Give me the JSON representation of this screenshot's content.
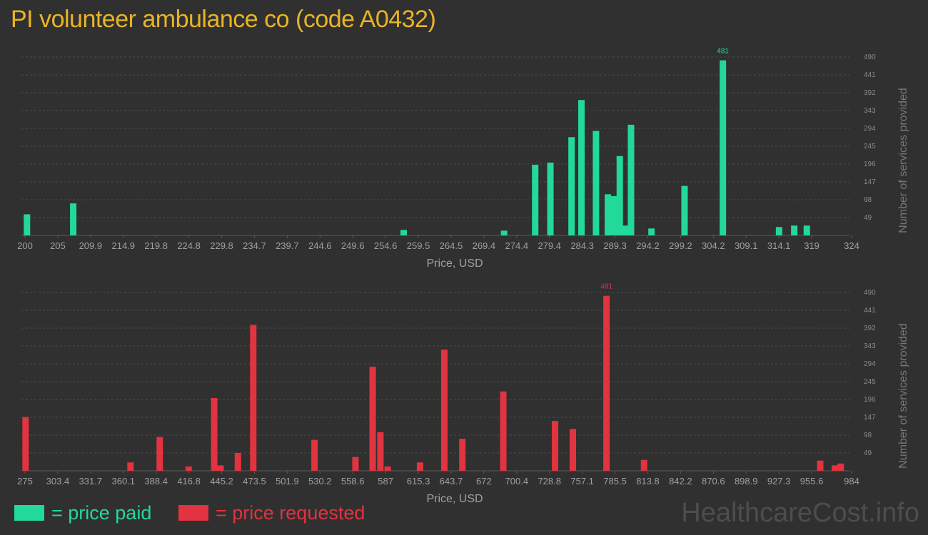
{
  "title": "PI volunteer ambulance co (code A0432)",
  "watermark": "HealthcareCost.info",
  "legend": {
    "paid_label": "= price paid",
    "requested_label": "= price requested",
    "paid_color": "#22d99a",
    "requested_color": "#e23340"
  },
  "chart_data": [
    {
      "type": "bar",
      "name": "price paid",
      "color": "#22d99a",
      "xlabel": "Price, USD",
      "ylabel": "Number of services provided",
      "xlim": [
        200,
        324
      ],
      "ylim": [
        0,
        490
      ],
      "x_ticks": [
        "200",
        "205",
        "209.9",
        "214.9",
        "219.8",
        "224.8",
        "229.8",
        "234.7",
        "239.7",
        "244.6",
        "249.6",
        "254.6",
        "259.5",
        "264.5",
        "269.4",
        "274.4",
        "279.4",
        "284.3",
        "289.3",
        "294.2",
        "299.2",
        "304.2",
        "309.1",
        "314.1",
        "319",
        "324"
      ],
      "y_ticks": [
        "49",
        "98",
        "147",
        "196",
        "245",
        "294",
        "343",
        "392",
        "441",
        "490"
      ],
      "max_label": "481",
      "x": [
        200.3,
        207.3,
        257.3,
        272.5,
        277.2,
        279.5,
        282.7,
        284.2,
        286.4,
        288.2,
        289.1,
        290.0,
        290.9,
        291.7,
        294.8,
        299.8,
        305.6,
        314.1,
        316.4,
        318.3
      ],
      "y": [
        58,
        88,
        15,
        13,
        194,
        200,
        270,
        372,
        287,
        113,
        108,
        218,
        27,
        304,
        19,
        136,
        481,
        23,
        27,
        27
      ]
    },
    {
      "type": "bar",
      "name": "price requested",
      "color": "#e23340",
      "xlabel": "Price, USD",
      "ylabel": "Number of services provided",
      "xlim": [
        275,
        984
      ],
      "ylim": [
        0,
        490
      ],
      "x_ticks": [
        "275",
        "303.4",
        "331.7",
        "360.1",
        "388.4",
        "416.8",
        "445.2",
        "473.5",
        "501.9",
        "530.2",
        "558.6",
        "587",
        "615.3",
        "643.7",
        "672",
        "700.4",
        "728.8",
        "757.1",
        "785.5",
        "813.8",
        "842.2",
        "870.6",
        "898.9",
        "927.3",
        "955.6",
        "984"
      ],
      "y_ticks": [
        "49",
        "98",
        "147",
        "196",
        "245",
        "294",
        "343",
        "392",
        "441",
        "490"
      ],
      "max_label": "481",
      "x": [
        275.5,
        366.3,
        391.6,
        416.6,
        438.7,
        444.2,
        459.2,
        472.5,
        525.5,
        560.9,
        575.8,
        582.5,
        588.8,
        616.8,
        637.8,
        653.4,
        688.8,
        733.6,
        749.0,
        778.1,
        810.6,
        963.0,
        975.7,
        980.7
      ],
      "y": [
        148,
        23,
        93,
        12,
        200,
        15,
        49,
        401,
        85,
        38,
        286,
        106,
        12,
        23,
        333,
        88,
        218,
        137,
        115,
        481,
        30,
        28,
        15,
        20
      ]
    }
  ]
}
